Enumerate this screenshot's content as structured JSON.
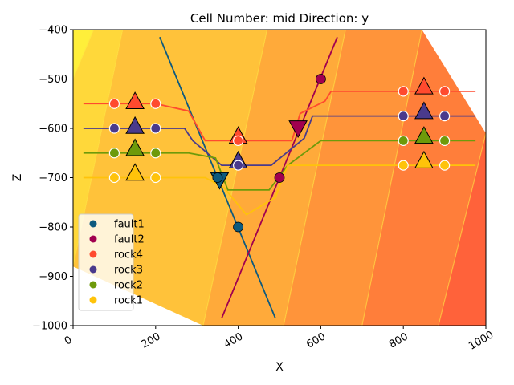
{
  "chart_data": {
    "type": "scatter",
    "title": "Cell Number: mid Direction: y",
    "xlabel": "X",
    "ylabel": "Z",
    "xlim": [
      0,
      1000
    ],
    "ylim": [
      -1000,
      -400
    ],
    "xticks": [
      "0",
      "200",
      "400",
      "600",
      "800",
      "1000"
    ],
    "xtick_values": [
      0,
      200,
      400,
      600,
      800,
      1000
    ],
    "yticks": [
      "−1000",
      "−900",
      "−800",
      "−700",
      "−600",
      "−500",
      "−400"
    ],
    "ytick_values": [
      -1000,
      -900,
      -800,
      -700,
      -600,
      -500,
      -400
    ],
    "legend_position": "lower-left",
    "background_bands": {
      "colors": [
        "#ffef3a",
        "#ffd83a",
        "#ffc23a",
        "#ffaa3a",
        "#ff943a",
        "#ff7e3a",
        "#ff623a",
        "#ff4a3a"
      ],
      "boundaries": [
        [
          [
            0,
            -500
          ],
          [
            50,
            -400
          ]
        ],
        [
          [
            0,
            -880
          ],
          [
            120,
            -400
          ]
        ],
        [
          [
            315,
            -1000
          ],
          [
            470,
            -400
          ]
        ],
        [
          [
            510,
            -1000
          ],
          [
            660,
            -400
          ]
        ],
        [
          [
            700,
            -1000
          ],
          [
            845,
            -400
          ]
        ],
        [
          [
            885,
            -1000
          ],
          [
            1000,
            -610
          ]
        ],
        [
          [
            1000,
            -1000
          ],
          [
            1000,
            -1000
          ]
        ]
      ]
    },
    "series": [
      {
        "name": "fault1",
        "color": "#0e5a7e",
        "points": [
          [
            350,
            -700
          ],
          [
            400,
            -800
          ]
        ],
        "orientations": [
          [
            355,
            -705,
            "down"
          ]
        ],
        "line": [
          [
            210,
            -415
          ],
          [
            490,
            -985
          ]
        ]
      },
      {
        "name": "fault2",
        "color": "#a1004f",
        "points": [
          [
            500,
            -700
          ],
          [
            600,
            -500
          ]
        ],
        "orientations": [
          [
            545,
            -600,
            "down"
          ]
        ],
        "line": [
          [
            360,
            -985
          ],
          [
            640,
            -415
          ]
        ]
      },
      {
        "name": "rock4",
        "color": "#ff4a2e",
        "points": [
          [
            100,
            -550
          ],
          [
            200,
            -550
          ],
          [
            400,
            -625
          ],
          [
            800,
            -525
          ],
          [
            900,
            -525
          ]
        ],
        "orientations": [
          [
            150,
            -545,
            "up"
          ],
          [
            400,
            -615,
            "up"
          ],
          [
            850,
            -515,
            "up"
          ]
        ],
        "line": [
          [
            25,
            -550
          ],
          [
            200,
            -550
          ],
          [
            280,
            -565
          ],
          [
            320,
            -625
          ],
          [
            530,
            -625
          ],
          [
            550,
            -570
          ],
          [
            610,
            -545
          ],
          [
            625,
            -525
          ],
          [
            975,
            -525
          ]
        ]
      },
      {
        "name": "rock3",
        "color": "#4a3a8c",
        "points": [
          [
            100,
            -600
          ],
          [
            200,
            -600
          ],
          [
            400,
            -675
          ],
          [
            800,
            -575
          ],
          [
            900,
            -575
          ]
        ],
        "orientations": [
          [
            150,
            -595,
            "up"
          ],
          [
            400,
            -665,
            "up"
          ],
          [
            850,
            -565,
            "up"
          ]
        ],
        "line": [
          [
            25,
            -600
          ],
          [
            270,
            -600
          ],
          [
            290,
            -625
          ],
          [
            360,
            -675
          ],
          [
            480,
            -675
          ],
          [
            560,
            -620
          ],
          [
            580,
            -575
          ],
          [
            975,
            -575
          ]
        ]
      },
      {
        "name": "rock2",
        "color": "#6e9a0a",
        "points": [
          [
            100,
            -650
          ],
          [
            200,
            -650
          ],
          [
            800,
            -625
          ],
          [
            900,
            -625
          ]
        ],
        "orientations": [
          [
            150,
            -640,
            "up"
          ],
          [
            850,
            -615,
            "up"
          ]
        ],
        "line": [
          [
            25,
            -650
          ],
          [
            280,
            -650
          ],
          [
            345,
            -660
          ],
          [
            375,
            -725
          ],
          [
            475,
            -725
          ],
          [
            520,
            -675
          ],
          [
            600,
            -625
          ],
          [
            975,
            -625
          ]
        ]
      },
      {
        "name": "rock1",
        "color": "#ffc30a",
        "points": [
          [
            100,
            -700
          ],
          [
            200,
            -700
          ],
          [
            800,
            -675
          ],
          [
            900,
            -675
          ]
        ],
        "orientations": [
          [
            150,
            -690,
            "up"
          ],
          [
            850,
            -665,
            "up"
          ]
        ],
        "line": [
          [
            25,
            -700
          ],
          [
            320,
            -700
          ],
          [
            365,
            -720
          ],
          [
            420,
            -775
          ],
          [
            490,
            -740
          ],
          [
            520,
            -675
          ],
          [
            975,
            -675
          ]
        ]
      }
    ]
  }
}
